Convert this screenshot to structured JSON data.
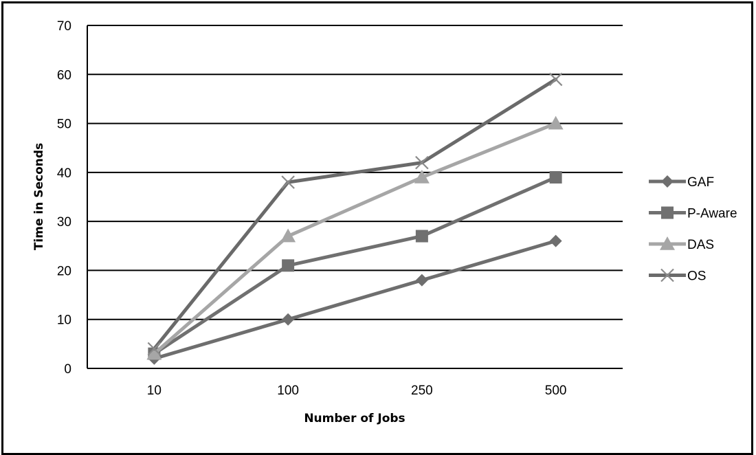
{
  "chart_data": {
    "type": "line",
    "categories": [
      "10",
      "100",
      "250",
      "500"
    ],
    "series": [
      {
        "name": "GAF",
        "values": [
          2,
          10,
          18,
          26
        ],
        "color": "#6e6e6e",
        "marker": "diamond"
      },
      {
        "name": "P-Aware",
        "values": [
          3,
          21,
          27,
          39
        ],
        "color": "#707070",
        "marker": "square"
      },
      {
        "name": "DAS",
        "values": [
          3,
          27,
          39,
          50
        ],
        "color": "#a6a6a6",
        "marker": "triangle"
      },
      {
        "name": "OS",
        "values": [
          4,
          38,
          42,
          59
        ],
        "color": "#6a6a6a",
        "marker": "x"
      }
    ],
    "title": "",
    "xlabel": "Number of Jobs",
    "ylabel": "Time in Seconds",
    "ylim": [
      0,
      70
    ],
    "yticks": [
      0,
      10,
      20,
      30,
      40,
      50,
      60,
      70
    ],
    "grid": true,
    "legend_position": "right"
  }
}
